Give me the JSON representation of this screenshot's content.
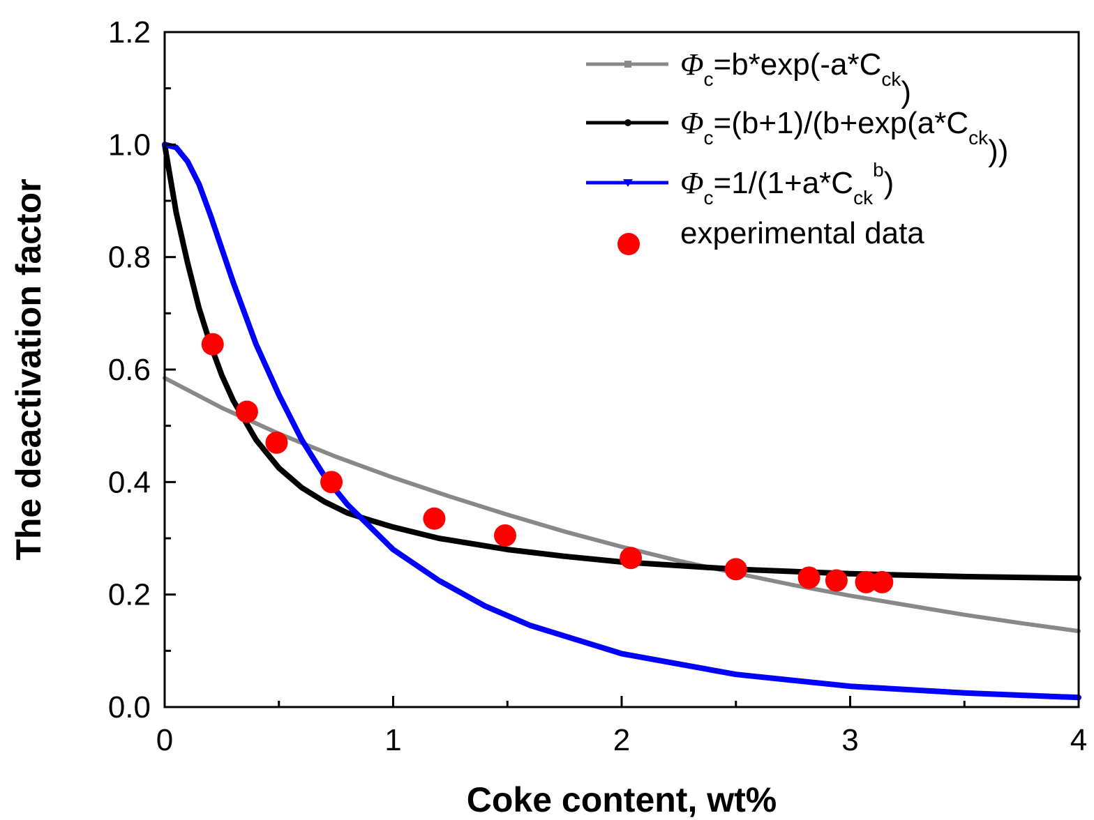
{
  "chart_data": {
    "type": "line",
    "xlabel": "Coke content, wt%",
    "ylabel": "The  deactivation factor",
    "xlim": [
      0,
      4
    ],
    "ylim": [
      0,
      1.2
    ],
    "xticks": [
      0,
      1,
      2,
      3,
      4
    ],
    "xtick_labels": [
      "0",
      "1",
      "2",
      "3",
      "4"
    ],
    "yticks": [
      0.0,
      0.2,
      0.4,
      0.6,
      0.8,
      1.0,
      1.2
    ],
    "ytick_labels": [
      "0.0",
      "0.2",
      "0.4",
      "0.6",
      "0.8",
      "1.0",
      "1.2"
    ],
    "legend_position": "top-right",
    "series": [
      {
        "name": "Φc=b*exp(-a*Cck)",
        "legend": {
          "sym": "Φ",
          "sub1": "c",
          "main": "=b*exp(-a*C",
          "sub2": "ck",
          "sup": "",
          "tail": ")"
        },
        "color": "#888888",
        "marker": "square",
        "x": [
          0,
          0.25,
          0.5,
          0.75,
          1.0,
          1.25,
          1.5,
          1.75,
          2.0,
          2.25,
          2.5,
          2.75,
          3.0,
          3.25,
          3.5,
          3.75,
          4.0
        ],
        "y": [
          0.585,
          0.532,
          0.486,
          0.445,
          0.408,
          0.374,
          0.342,
          0.312,
          0.285,
          0.26,
          0.238,
          0.217,
          0.198,
          0.181,
          0.164,
          0.149,
          0.135
        ]
      },
      {
        "name": "Φc=(b+1)/(b+exp(a*Cck))",
        "legend": {
          "sym": "Φ",
          "sub1": "c",
          "main": "=(b+1)/(b+exp(a*C",
          "sub2": "ck",
          "sup": "",
          "tail": "))"
        },
        "color": "#000000",
        "marker": "circle",
        "x": [
          0,
          0.05,
          0.1,
          0.15,
          0.2,
          0.25,
          0.3,
          0.4,
          0.5,
          0.6,
          0.7,
          0.8,
          0.9,
          1.0,
          1.2,
          1.5,
          1.75,
          2.0,
          2.5,
          3.0,
          3.5,
          4.0
        ],
        "y": [
          1.0,
          0.88,
          0.79,
          0.71,
          0.645,
          0.59,
          0.545,
          0.475,
          0.425,
          0.39,
          0.365,
          0.345,
          0.332,
          0.32,
          0.3,
          0.28,
          0.268,
          0.258,
          0.245,
          0.237,
          0.232,
          0.229
        ]
      },
      {
        "name": "Φc=1/(1+a*Cck^b)",
        "legend": {
          "sym": "Φ",
          "sub1": "c",
          "main": "=1/(1+a*C",
          "sub2": "ck",
          "sup": "b",
          "tail": ")"
        },
        "color": "#0000ff",
        "marker": "triangle-down",
        "x": [
          0,
          0.05,
          0.1,
          0.15,
          0.2,
          0.25,
          0.3,
          0.4,
          0.5,
          0.6,
          0.7,
          0.8,
          0.9,
          1.0,
          1.2,
          1.4,
          1.6,
          1.8,
          2.0,
          2.5,
          3.0,
          3.5,
          4.0
        ],
        "y": [
          1.0,
          0.995,
          0.97,
          0.93,
          0.875,
          0.815,
          0.755,
          0.645,
          0.555,
          0.475,
          0.41,
          0.36,
          0.32,
          0.28,
          0.225,
          0.18,
          0.145,
          0.12,
          0.095,
          0.058,
          0.037,
          0.025,
          0.017
        ]
      },
      {
        "name": "experimental data",
        "legend": {
          "sym": "",
          "sub1": "",
          "main": "experimental data",
          "sub2": "",
          "sup": "",
          "tail": ""
        },
        "color": "#ff0000",
        "marker": "dot",
        "scatter": true,
        "x": [
          0.21,
          0.36,
          0.49,
          0.73,
          1.18,
          1.49,
          2.04,
          2.5,
          2.82,
          2.94,
          3.07,
          3.14
        ],
        "y": [
          0.645,
          0.525,
          0.47,
          0.4,
          0.335,
          0.305,
          0.265,
          0.245,
          0.23,
          0.225,
          0.222,
          0.222
        ]
      }
    ]
  }
}
